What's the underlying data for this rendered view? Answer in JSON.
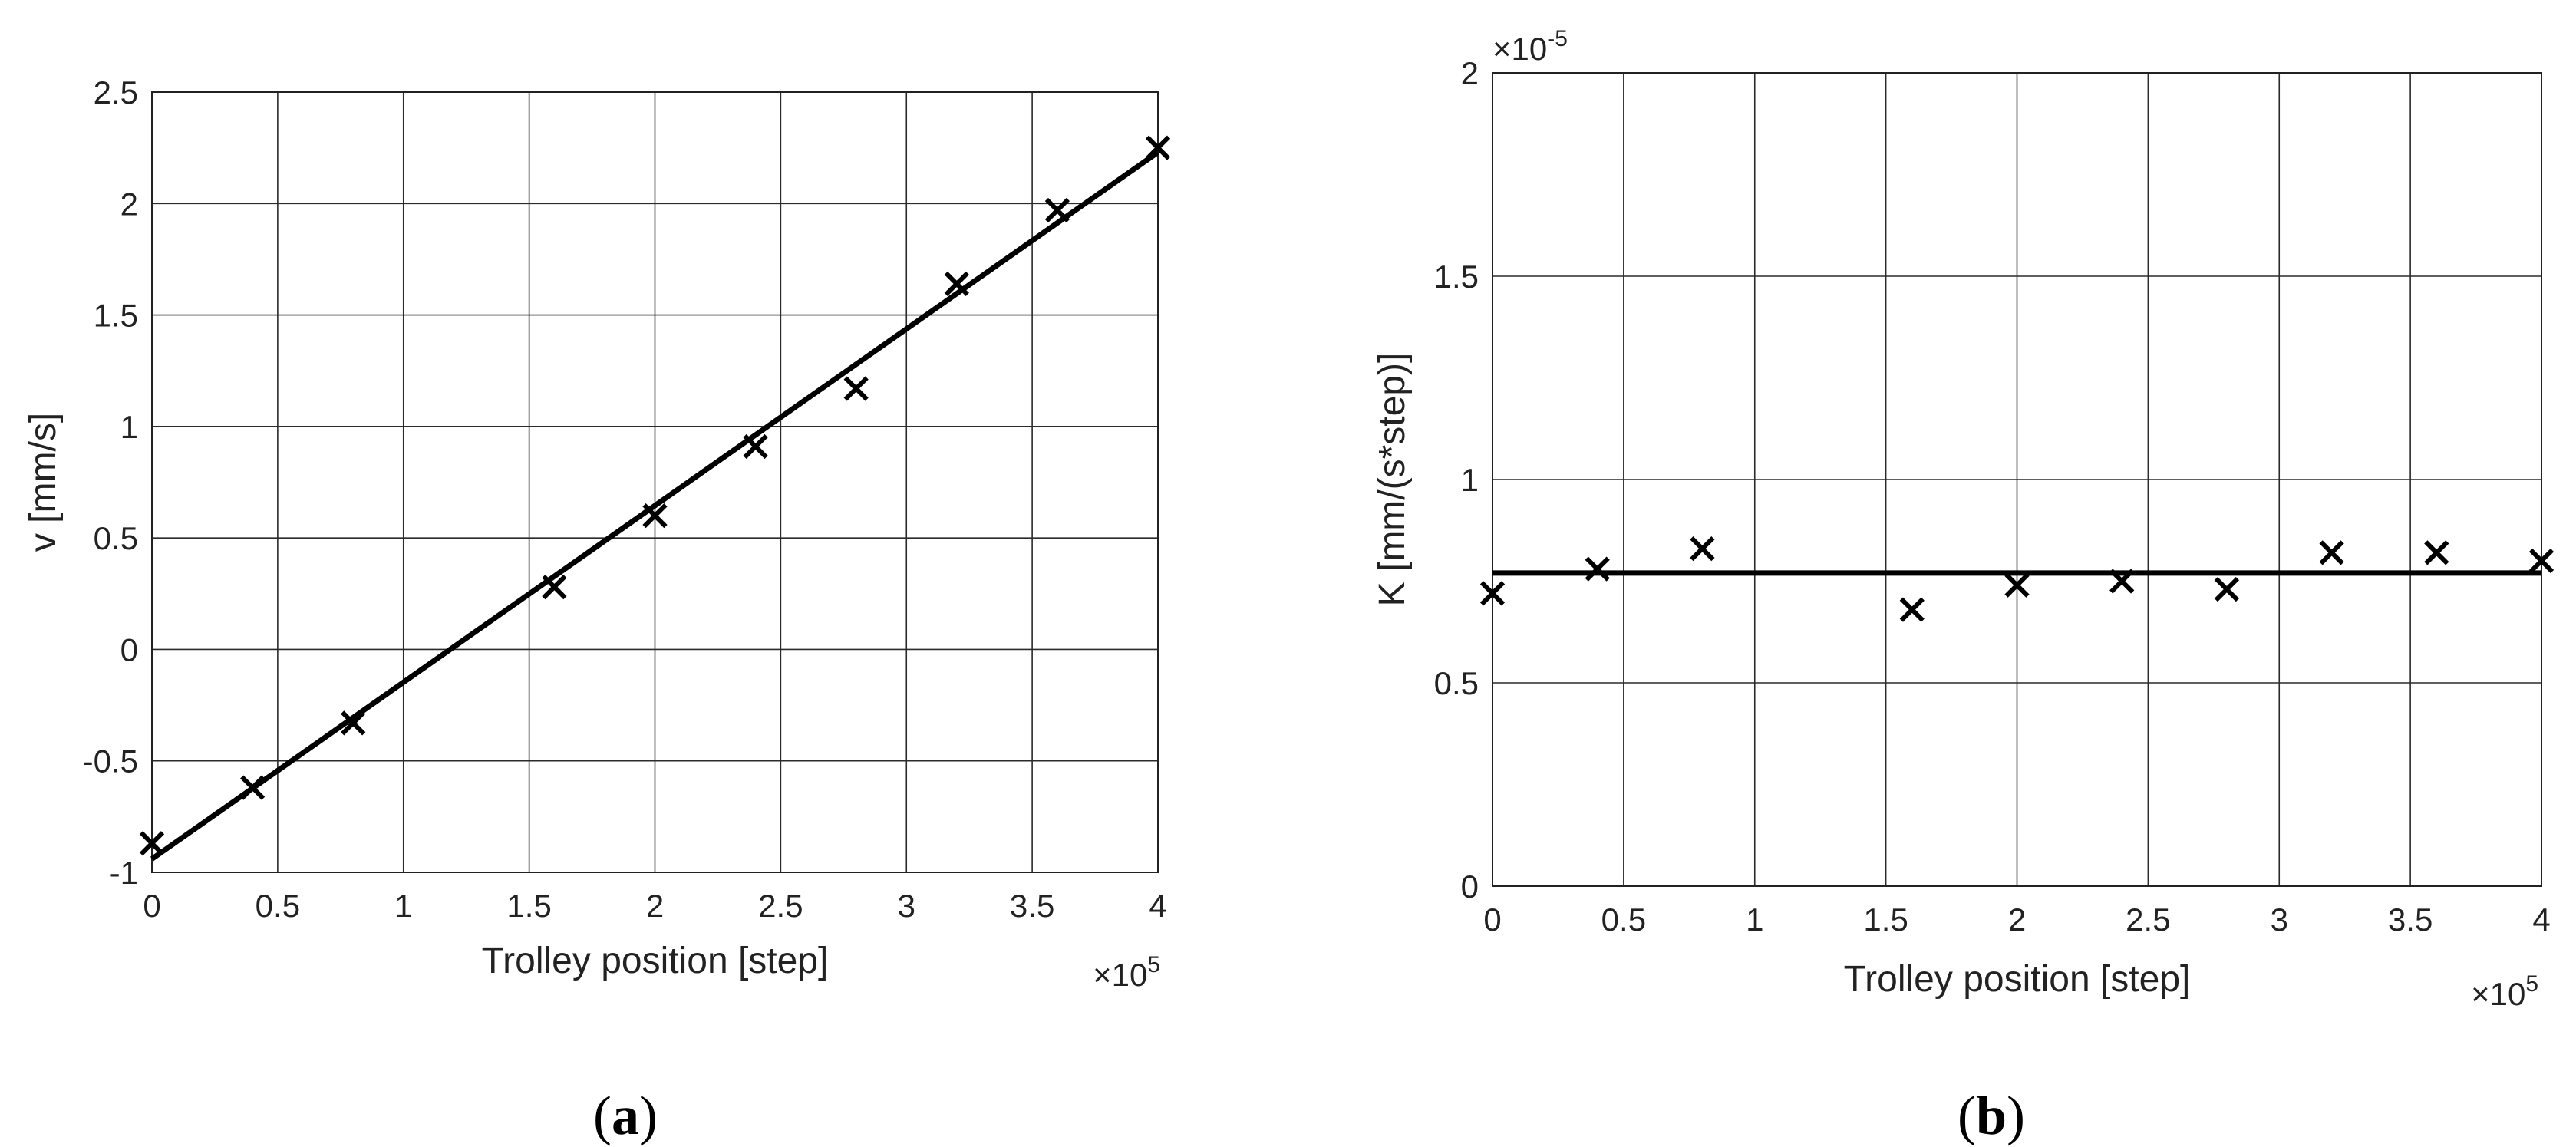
{
  "chart_data": [
    {
      "type": "scatter",
      "panel_label": "a",
      "xlabel": "Trolley position [step]",
      "ylabel": "v [mm/s]",
      "x_multiplier": "×10",
      "x_multiplier_exp": "5",
      "xlim": [
        0,
        4
      ],
      "ylim": [
        -1,
        2.5
      ],
      "xticks": [
        "0",
        "0.5",
        "1",
        "1.5",
        "2",
        "2.5",
        "3",
        "3.5",
        "4"
      ],
      "yticks": [
        "-1",
        "-0.5",
        "0",
        "0.5",
        "1",
        "1.5",
        "2",
        "2.5"
      ],
      "grid": true,
      "series": [
        {
          "marker": "x",
          "x": [
            0,
            0.4,
            0.8,
            1.6,
            2.0,
            2.4,
            2.8,
            3.2,
            3.6,
            4.0
          ],
          "y": [
            -0.87,
            -0.62,
            -0.33,
            0.28,
            0.6,
            0.91,
            1.17,
            1.64,
            1.97,
            2.25
          ]
        },
        {
          "marker": "none",
          "line": "fit",
          "x": [
            0,
            4.0
          ],
          "y": [
            -0.94,
            2.23
          ]
        }
      ]
    },
    {
      "type": "scatter",
      "panel_label": "b",
      "xlabel": "Trolley position [step]",
      "ylabel": "K [mm/(s*step)]",
      "x_multiplier": "×10",
      "x_multiplier_exp": "5",
      "y_multiplier": "×10",
      "y_multiplier_exp": "-5",
      "xlim": [
        0,
        4
      ],
      "ylim": [
        0,
        2
      ],
      "xticks": [
        "0",
        "0.5",
        "1",
        "1.5",
        "2",
        "2.5",
        "3",
        "3.5",
        "4"
      ],
      "yticks": [
        "0",
        "0.5",
        "1",
        "1.5",
        "2"
      ],
      "grid": true,
      "series": [
        {
          "marker": "x",
          "x": [
            0,
            0.4,
            0.8,
            1.6,
            2.0,
            2.4,
            2.8,
            3.2,
            3.6,
            4.0
          ],
          "y": [
            0.72,
            0.78,
            0.83,
            0.68,
            0.74,
            0.75,
            0.73,
            0.82,
            0.82,
            0.8
          ]
        },
        {
          "marker": "none",
          "line": "fit",
          "x": [
            0,
            4.0
          ],
          "y": [
            0.77,
            0.77
          ]
        }
      ]
    }
  ]
}
